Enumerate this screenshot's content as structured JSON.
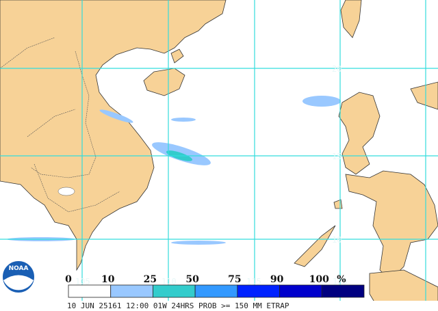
{
  "logo": "NOAA",
  "grid": {
    "latitudes": [
      "20",
      "15",
      "10"
    ],
    "longitudes": [
      "105",
      "110",
      "115",
      "120"
    ]
  },
  "legend": {
    "labels": [
      "0",
      "10",
      "25",
      "50",
      "75",
      "90",
      "100"
    ],
    "unit": "%",
    "colors": [
      "#ffffff",
      "#99c8ff",
      "#33cccc",
      "#3399ff",
      "#0022ff",
      "#0000cc",
      "#000080"
    ]
  },
  "caption": "10 JUN 25161 12:00 01W 24HRS PROB >= 150 MM ETRAP"
}
